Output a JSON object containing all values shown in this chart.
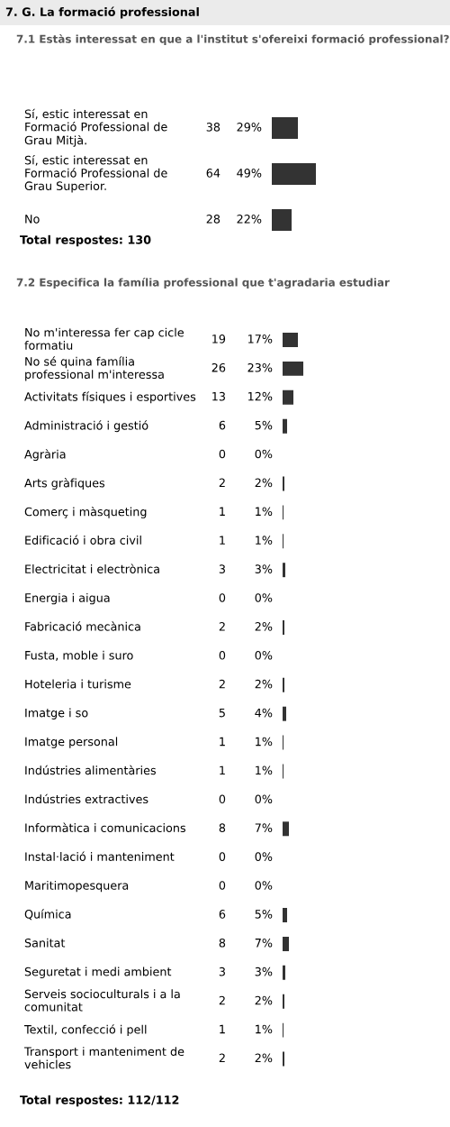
{
  "chart_data": [
    {
      "type": "bar",
      "orientation": "horizontal",
      "title": "7. G. La formació professional",
      "subtitle": "7.1 Estàs interessat en que a l'institut s'ofereixi formació professional?",
      "categories": [
        "Sí, estic interessat en Formació Professional de Grau Mitjà.",
        "Sí, estic interessat en Formació Professional de Grau Superior.",
        "No"
      ],
      "values": [
        29,
        49,
        22
      ],
      "color": "#333333",
      "value_labels": [
        "29%",
        "49%",
        "22%"
      ],
      "annotations": [
        "38",
        "64",
        "28",
        "Total respostes: 130"
      ]
    },
    {
      "type": "bar",
      "orientation": "horizontal",
      "title": "7.2 Especifica la família professional que t'agradaria estudiar",
      "categories": [
        "No m'interessa fer cap cicle formatiu",
        "No sé quina família professional m'interessa",
        "Activitats físiques i esportives",
        "Administració i gestió",
        "Agrària",
        "Arts gràfiques",
        "Comerç i màsqueting",
        "Edificació i obra civil",
        "Electricitat i electrònica",
        "Energia i aigua",
        "Fabricació mecànica",
        "Fusta, moble i suro",
        "Hoteleria i turisme",
        "Imatge i so",
        "Imatge personal",
        "Indústries alimentàries",
        "Indústries extractives",
        "Informàtica i comunicacions",
        "Instal·lació i manteniment",
        "Maritimopesquera",
        "Química",
        "Sanitat",
        "Seguretat i medi ambient",
        "Serveis socioculturals i a la comunitat",
        "Textil, confecció i pell",
        "Transport i manteniment de vehicles"
      ],
      "values": [
        17,
        23,
        12,
        5,
        0,
        2,
        1,
        1,
        3,
        0,
        2,
        0,
        2,
        4,
        1,
        1,
        0,
        7,
        0,
        0,
        5,
        7,
        3,
        2,
        1,
        2
      ],
      "color": "#333333",
      "value_labels": [
        "17%",
        "23%",
        "12%",
        "5%",
        "0%",
        "2%",
        "1%",
        "1%",
        "3%",
        "0%",
        "2%",
        "0%",
        "2%",
        "4%",
        "1%",
        "1%",
        "0%",
        "7%",
        "0%",
        "0%",
        "5%",
        "7%",
        "3%",
        "2%",
        "1%",
        "2%"
      ],
      "annotations": [
        "19",
        "26",
        "13",
        "6",
        "0",
        "2",
        "1",
        "1",
        "3",
        "0",
        "2",
        "0",
        "2",
        "5",
        "1",
        "1",
        "0",
        "8",
        "0",
        "0",
        "6",
        "8",
        "3",
        "2",
        "1",
        "2",
        "Total respostes: 112/112"
      ]
    }
  ]
}
